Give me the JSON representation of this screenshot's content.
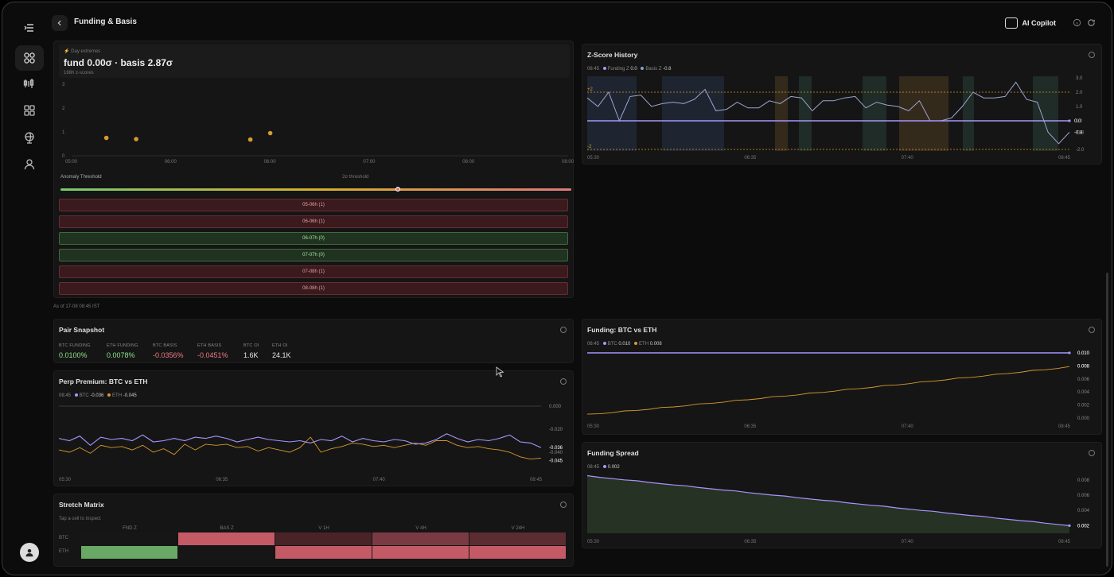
{
  "header": {
    "title": "Funding & Basis",
    "copilot_label": "AI Copilot"
  },
  "colors": {
    "btc": "#a895ff",
    "eth": "#d79a2c",
    "positive": "#8fe38a",
    "negative": "#f07a86",
    "threshold": "#d79a2c"
  },
  "extremes": {
    "kicker": "Day extremes",
    "headline": "fund 0.00σ · basis 2.87σ",
    "sub": "168h z-scores",
    "y_ticks": [
      "3",
      "2",
      "1",
      "0"
    ],
    "x_ticks": [
      "05:00",
      "06:00",
      "06:00",
      "07:00",
      "08:00",
      "08:00"
    ],
    "points": [
      {
        "t": 0.035,
        "v": 0.75
      },
      {
        "t": 0.065,
        "v": 0.7
      },
      {
        "t": 0.18,
        "v": 0.68
      },
      {
        "t": 0.2,
        "v": 0.95
      }
    ],
    "threshold_label": "Anomaly Threshold",
    "threshold_value": "2σ threshold",
    "threshold_position": 0.66,
    "rows": [
      {
        "label": "05-06h (1)",
        "status": "red"
      },
      {
        "label": "06-06h (1)",
        "status": "red"
      },
      {
        "label": "06-07h (0)",
        "status": "green"
      },
      {
        "label": "07-07h (0)",
        "status": "green"
      },
      {
        "label": "07-08h (1)",
        "status": "red"
      },
      {
        "label": "08-08h (1)",
        "status": "red"
      }
    ],
    "as_of": "As of 17-08 08:45 IST"
  },
  "zscore": {
    "title": "Z-Score History",
    "time": "08:45",
    "funding_label": "Funding Z",
    "funding_value": "0.0",
    "basis_label": "Basis Z",
    "basis_value": "-0.8",
    "plus_label": "+2",
    "minus_label": "-2",
    "y_ticks": [
      "3.0",
      "2.0",
      "1.0",
      "0.0",
      "-0.8",
      "-2.0"
    ],
    "x_ticks": [
      "05:30",
      "06:35",
      "07:40",
      "08:45"
    ],
    "funding_badge": "0.0",
    "basis_badge": "-0.8"
  },
  "snapshot": {
    "title": "Pair Snapshot",
    "items": [
      {
        "label": "BTC FUNDING",
        "value": "0.0100%",
        "tone": "pos"
      },
      {
        "label": "ETH FUNDING",
        "value": "0.0078%",
        "tone": "pos"
      },
      {
        "label": "BTC BASIS",
        "value": "-0.0356%",
        "tone": "neg"
      },
      {
        "label": "ETH BASIS",
        "value": "-0.0451%",
        "tone": "neg"
      },
      {
        "label": "BTC OI",
        "value": "1.6K",
        "tone": "neutral"
      },
      {
        "label": "ETH OI",
        "value": "24.1K",
        "tone": "neutral"
      }
    ]
  },
  "perp": {
    "title": "Perp Premium: BTC vs ETH",
    "time": "08:45",
    "btc_label": "BTC",
    "btc_value": "-0.036",
    "eth_label": "ETH",
    "eth_value": "-0.045",
    "y_ticks": [
      "0.000",
      "-0.020",
      "-0.040"
    ],
    "x_ticks": [
      "05:30",
      "06:35",
      "07:40",
      "08:45"
    ],
    "btc_badge": "-0.036",
    "eth_badge": "-0.045"
  },
  "stretch": {
    "title": "Stretch Matrix",
    "hint": "Tap a cell to inspect",
    "columns": [
      "FND Z",
      "BAS Z",
      "V 1H",
      "V 4H",
      "V 24H"
    ],
    "rows": [
      "BTC",
      "ETH"
    ],
    "cells": [
      [
        "#161616",
        "#c55a67",
        "#4a2328",
        "#7a3a44",
        "#5c2c33"
      ],
      [
        "#6aa865",
        "#161616",
        "#c55a67",
        "#c55a67",
        "#c55a67"
      ]
    ]
  },
  "funding_cmp": {
    "title": "Funding: BTC vs ETH",
    "time": "08:45",
    "btc_label": "BTC",
    "btc_value": "0.010",
    "eth_label": "ETH",
    "eth_value": "0.008",
    "y_ticks": [
      "0.010",
      "0.008",
      "0.006",
      "0.004",
      "0.002",
      "0.000"
    ],
    "x_ticks": [
      "05:30",
      "06:35",
      "07:40",
      "08:45"
    ],
    "btc_badge": "0.010",
    "eth_badge": "0.008"
  },
  "spread": {
    "title": "Funding Spread",
    "time": "08:45",
    "value": "0.002",
    "y_ticks": [
      "0.008",
      "0.006",
      "0.004",
      "0.002"
    ],
    "x_ticks": [
      "05:30",
      "06:35",
      "07:40",
      "08:45"
    ],
    "badge": "0.002"
  }
}
